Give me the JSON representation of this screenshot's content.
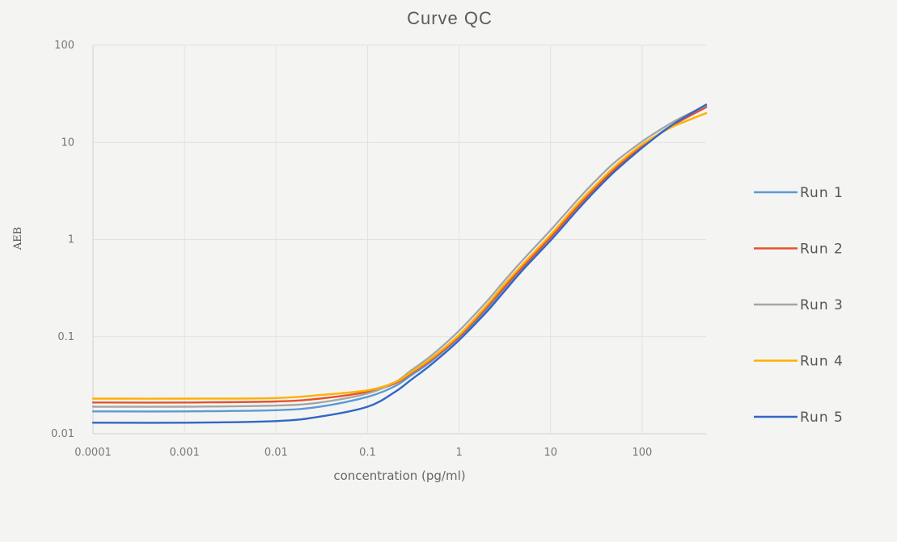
{
  "chart_data": {
    "type": "line",
    "title": "Curve QC",
    "xlabel": "concentration (pg/ml)",
    "ylabel": "AEB",
    "xscale": "log",
    "yscale": "log",
    "xlim": [
      0.0001,
      500
    ],
    "ylim": [
      0.01,
      100
    ],
    "xticks": [
      "0.0001",
      "0.001",
      "0.01",
      "0.1",
      "1",
      "10",
      "100"
    ],
    "xtick_values": [
      0.0001,
      0.001,
      0.01,
      0.1,
      1,
      10,
      100
    ],
    "yticks": [
      "0.01",
      "0.1",
      "1",
      "10",
      "100"
    ],
    "ytick_values": [
      0.01,
      0.1,
      1,
      10,
      100
    ],
    "grid": true,
    "legend_position": "right",
    "x": [
      0.0001,
      0.001,
      0.01,
      0.03,
      0.1,
      0.2,
      0.3,
      0.5,
      1,
      2,
      3,
      5,
      10,
      20,
      30,
      50,
      100,
      200,
      300,
      500
    ],
    "series": [
      {
        "name": "Run 1",
        "color": "#5b9bd5",
        "values": [
          0.017,
          0.017,
          0.0175,
          0.019,
          0.024,
          0.031,
          0.04,
          0.056,
          0.098,
          0.19,
          0.3,
          0.52,
          1.05,
          2.2,
          3.3,
          5.3,
          9.2,
          14.5,
          18.0,
          23.5
        ]
      },
      {
        "name": "Run 2",
        "color": "#e5532b",
        "values": [
          0.021,
          0.021,
          0.0215,
          0.023,
          0.027,
          0.033,
          0.042,
          0.058,
          0.1,
          0.2,
          0.31,
          0.53,
          1.06,
          2.2,
          3.3,
          5.3,
          9.1,
          14.3,
          17.8,
          23.0
        ]
      },
      {
        "name": "Run 3",
        "color": "#a5a5a5",
        "values": [
          0.019,
          0.019,
          0.0195,
          0.021,
          0.026,
          0.034,
          0.045,
          0.064,
          0.115,
          0.23,
          0.36,
          0.62,
          1.25,
          2.6,
          3.9,
          6.2,
          10.2,
          15.5,
          19.0,
          24.0
        ]
      },
      {
        "name": "Run 4",
        "color": "#ffb000",
        "values": [
          0.023,
          0.023,
          0.0233,
          0.025,
          0.028,
          0.034,
          0.043,
          0.06,
          0.104,
          0.21,
          0.33,
          0.56,
          1.12,
          2.35,
          3.5,
          5.6,
          9.5,
          14.0,
          16.5,
          20.0
        ]
      },
      {
        "name": "Run 5",
        "color": "#3266c8",
        "values": [
          0.013,
          0.013,
          0.0135,
          0.015,
          0.019,
          0.027,
          0.036,
          0.052,
          0.092,
          0.18,
          0.28,
          0.49,
          0.98,
          2.05,
          3.1,
          5.0,
          8.8,
          14.5,
          18.5,
          24.5
        ]
      }
    ]
  }
}
